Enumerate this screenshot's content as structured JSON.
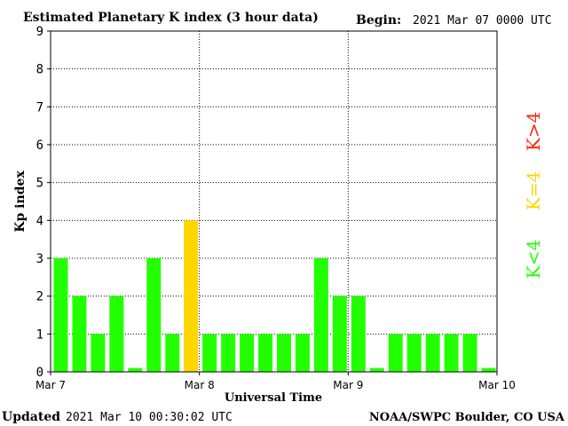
{
  "header": {
    "title": "Estimated Planetary K index (3 hour data)",
    "begin_label": "Begin:",
    "begin_value": "2021 Mar 07 0000 UTC"
  },
  "footer": {
    "updated_label": "Updated",
    "updated_value": "2021 Mar 10 00:30:02 UTC",
    "credit": "NOAA/SWPC Boulder, CO USA"
  },
  "legend": {
    "low": "K<4",
    "equal": "K=4",
    "high": "K>4"
  },
  "colors": {
    "low": "#22ff00",
    "equal": "#ffd700",
    "high": "#ff2200",
    "axis": "#000000",
    "grid": "#000000"
  },
  "chart_data": {
    "type": "bar",
    "xlabel": "Universal Time",
    "ylabel": "Kp index",
    "ylim": [
      0,
      9
    ],
    "yticks": [
      "0",
      "1",
      "2",
      "3",
      "4",
      "5",
      "6",
      "7",
      "8",
      "9"
    ],
    "xtick_labels": [
      "Mar 7",
      "Mar 8",
      "Mar 9",
      "Mar 10"
    ],
    "grid": true,
    "values": [
      3,
      2,
      1,
      2,
      0.1,
      3,
      1,
      4,
      1,
      1,
      1,
      1,
      1,
      1,
      3,
      2,
      2,
      0.1,
      1,
      1,
      1,
      1,
      1,
      0.1
    ]
  }
}
